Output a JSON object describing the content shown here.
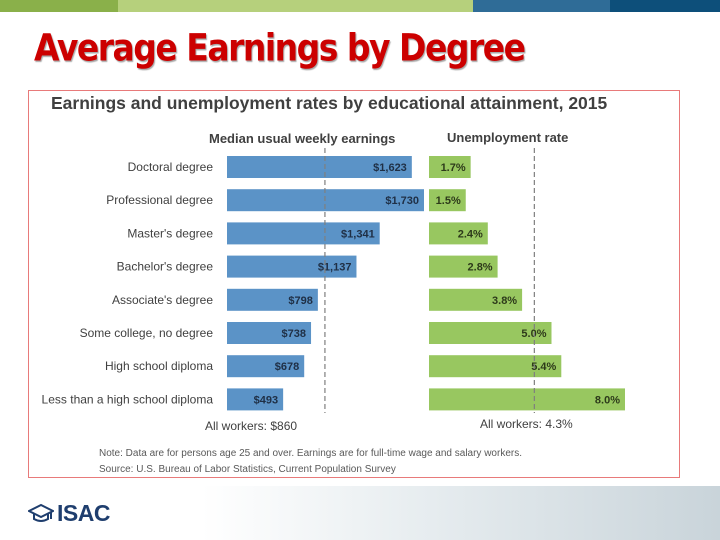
{
  "slide": {
    "title": "Average Earnings by Degree",
    "logo_text": "ISAC"
  },
  "colors": {
    "title": "#cc0000",
    "earnings_bar": "#5b93c7",
    "unemployment_bar": "#98c760",
    "topbar": [
      "#8ab04a",
      "#b6d07c",
      "#2f6c97",
      "#0d4f7a"
    ]
  },
  "chart_data": {
    "type": "bar",
    "title": "Earnings and unemployment rates by educational attainment, 2015",
    "categories": [
      "Doctoral degree",
      "Professional degree",
      "Master's degree",
      "Bachelor's degree",
      "Associate's degree",
      "Some college, no degree",
      "High school diploma",
      "Less than a high school diploma"
    ],
    "series": [
      {
        "name": "Median usual weekly earnings",
        "values": [
          1623,
          1730,
          1341,
          1137,
          798,
          738,
          678,
          493
        ],
        "labels": [
          "$1,623",
          "$1,730",
          "$1,341",
          "$1,137",
          "$798",
          "$738",
          "$678",
          "$493"
        ],
        "reference_label": "All workers: $860",
        "reference_value": 860
      },
      {
        "name": "Unemployment rate",
        "values": [
          1.7,
          1.5,
          2.4,
          2.8,
          3.8,
          5.0,
          5.4,
          8.0
        ],
        "labels": [
          "1.7%",
          "1.5%",
          "2.4%",
          "2.8%",
          "3.8%",
          "5.0%",
          "5.4%",
          "8.0%"
        ],
        "reference_label": "All workers: 4.3%",
        "reference_value": 4.3
      }
    ],
    "note": "Note: Data are for persons age 25 and over. Earnings are for full-time wage and salary workers.",
    "source": "Source: U.S. Bureau of Labor Statistics, Current Population Survey",
    "grid": false,
    "legend": "none"
  }
}
